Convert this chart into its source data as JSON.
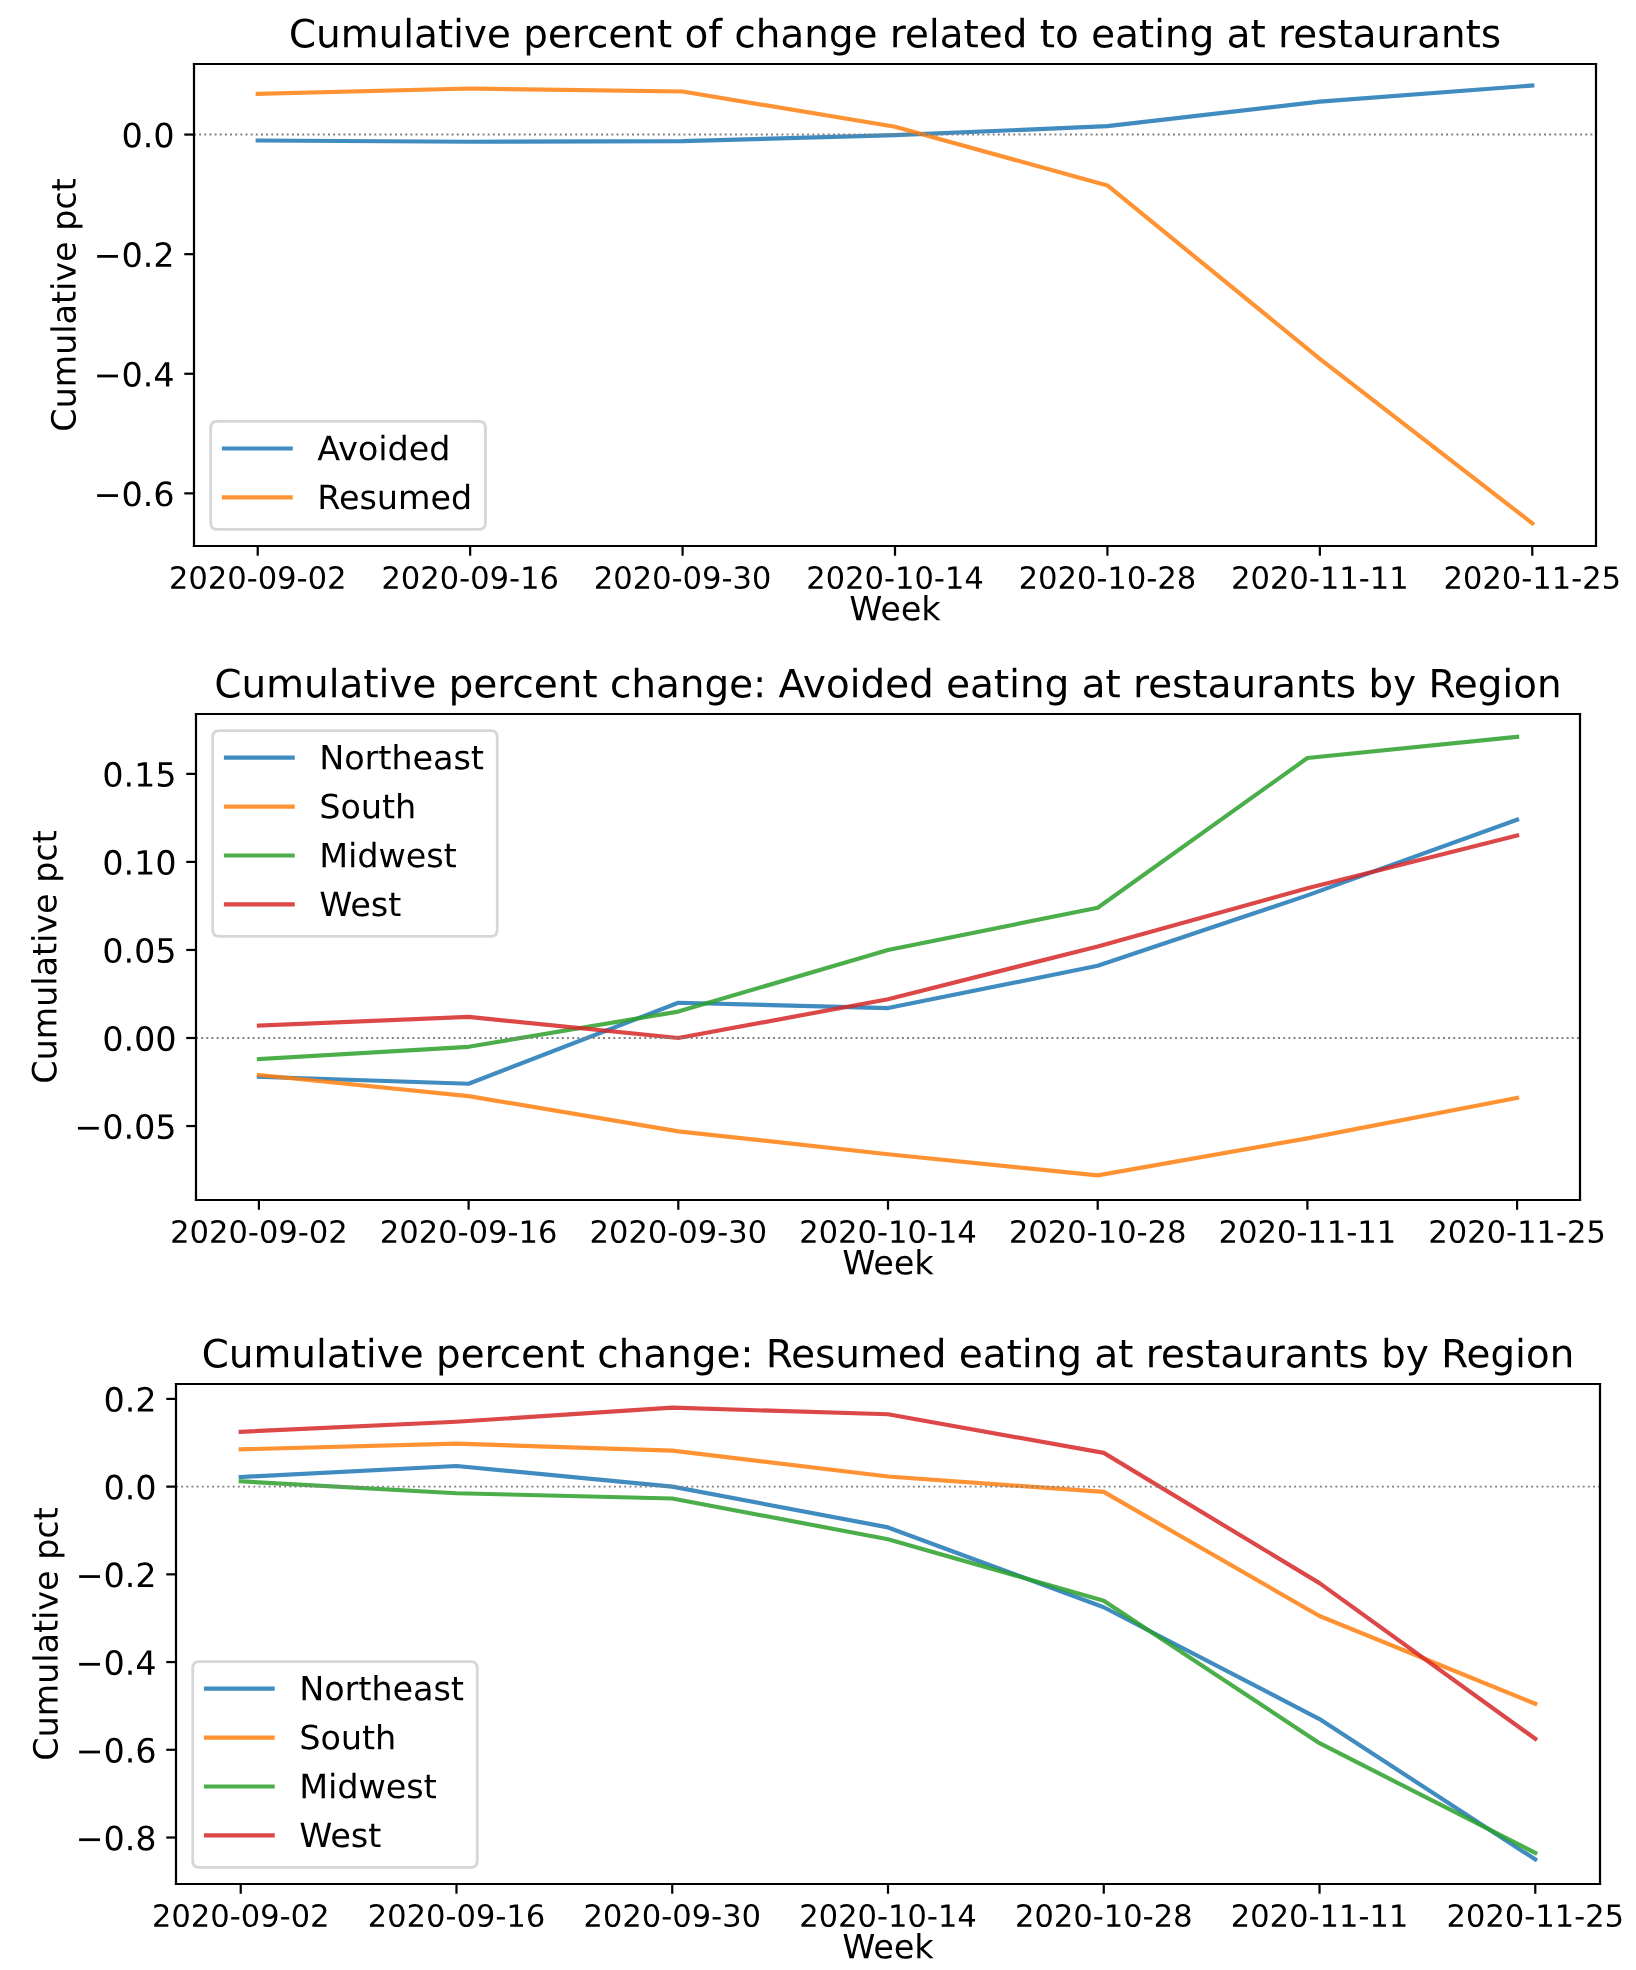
{
  "chart_data": [
    {
      "type": "line",
      "title": "Cumulative percent of change related to eating at restaurants",
      "xlabel": "Week",
      "ylabel": "Cumulative pct",
      "categories": [
        "2020-09-02",
        "2020-09-16",
        "2020-09-30",
        "2020-10-14",
        "2020-10-28",
        "2020-11-11",
        "2020-11-25"
      ],
      "ylim": [
        -0.688,
        0.118
      ],
      "yticks": [
        {
          "value": -0.6,
          "label": "−0.6"
        },
        {
          "value": -0.4,
          "label": "−0.4"
        },
        {
          "value": -0.2,
          "label": "−0.2"
        },
        {
          "value": 0,
          "label": "0.0"
        }
      ],
      "legend": "bottom left",
      "grid": false,
      "ref_lines": [
        {
          "axis": "y",
          "value": 0,
          "color": "#808080",
          "line_style": "dotted"
        }
      ],
      "series": [
        {
          "name": "Avoided",
          "color": "#1f77b4",
          "values": [
            -0.01,
            -0.012,
            -0.011,
            -0.001,
            0.014,
            0.055,
            0.082
          ]
        },
        {
          "name": "Resumed",
          "color": "#ff7f0e",
          "values": [
            0.068,
            0.077,
            0.072,
            0.013,
            -0.085,
            -0.375,
            -0.65
          ]
        }
      ]
    },
    {
      "type": "line",
      "title": "Cumulative percent change: Avoided eating at restaurants by Region",
      "xlabel": "Week",
      "ylabel": "Cumulative pct",
      "categories": [
        "2020-09-02",
        "2020-09-16",
        "2020-09-30",
        "2020-10-14",
        "2020-10-28",
        "2020-11-11",
        "2020-11-25"
      ],
      "ylim": [
        -0.092,
        0.184
      ],
      "yticks": [
        {
          "value": -0.05,
          "label": "−0.05"
        },
        {
          "value": 0,
          "label": "0.00"
        },
        {
          "value": 0.05,
          "label": "0.05"
        },
        {
          "value": 0.1,
          "label": "0.10"
        },
        {
          "value": 0.15,
          "label": "0.15"
        }
      ],
      "legend": "top left",
      "grid": false,
      "ref_lines": [
        {
          "axis": "y",
          "value": 0,
          "color": "#808080",
          "line_style": "dotted"
        }
      ],
      "series": [
        {
          "name": "Northeast",
          "color": "#1f77b4",
          "values": [
            -0.022,
            -0.026,
            0.02,
            0.017,
            0.041,
            0.081,
            0.124
          ]
        },
        {
          "name": "South",
          "color": "#ff7f0e",
          "values": [
            -0.021,
            -0.033,
            -0.053,
            -0.066,
            -0.078,
            -0.057,
            -0.034
          ]
        },
        {
          "name": "Midwest",
          "color": "#2ca02c",
          "values": [
            -0.012,
            -0.005,
            0.015,
            0.05,
            0.074,
            0.159,
            0.171
          ]
        },
        {
          "name": "West",
          "color": "#d62728",
          "values": [
            0.007,
            0.012,
            0.0,
            0.022,
            0.052,
            0.085,
            0.115
          ]
        }
      ]
    },
    {
      "type": "line",
      "title": "Cumulative percent change: Resumed eating at restaurants by Region",
      "xlabel": "Week",
      "ylabel": "Cumulative pct",
      "categories": [
        "2020-09-02",
        "2020-09-16",
        "2020-09-30",
        "2020-10-14",
        "2020-10-28",
        "2020-11-11",
        "2020-11-25"
      ],
      "ylim": [
        -0.906,
        0.234
      ],
      "yticks": [
        {
          "value": -0.8,
          "label": "−0.8"
        },
        {
          "value": -0.6,
          "label": "−0.6"
        },
        {
          "value": -0.4,
          "label": "−0.4"
        },
        {
          "value": -0.2,
          "label": "−0.2"
        },
        {
          "value": 0,
          "label": "0.0"
        },
        {
          "value": 0.2,
          "label": "0.2"
        }
      ],
      "legend": "bottom left",
      "grid": false,
      "ref_lines": [
        {
          "axis": "y",
          "value": 0,
          "color": "#808080",
          "line_style": "dotted"
        }
      ],
      "series": [
        {
          "name": "Northeast",
          "color": "#1f77b4",
          "values": [
            0.022,
            0.047,
            0.0,
            -0.093,
            -0.275,
            -0.53,
            -0.85
          ]
        },
        {
          "name": "South",
          "color": "#ff7f0e",
          "values": [
            0.085,
            0.098,
            0.082,
            0.023,
            -0.012,
            -0.295,
            -0.495
          ]
        },
        {
          "name": "Midwest",
          "color": "#2ca02c",
          "values": [
            0.012,
            -0.015,
            -0.027,
            -0.12,
            -0.26,
            -0.585,
            -0.835
          ]
        },
        {
          "name": "West",
          "color": "#d62728",
          "values": [
            0.125,
            0.148,
            0.18,
            0.165,
            0.077,
            -0.22,
            -0.575
          ]
        }
      ]
    }
  ]
}
